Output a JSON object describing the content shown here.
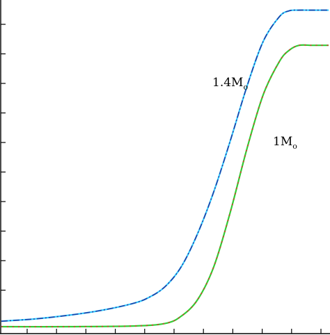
{
  "chart_data": {
    "type": "line",
    "title": "",
    "xlabel": "",
    "ylabel": "",
    "xlim": [
      0,
      1
    ],
    "ylim": [
      0,
      1
    ],
    "grid": false,
    "series": [
      {
        "name": "1.4M",
        "name_sub": "o",
        "color": "#1f3fa8",
        "overlay_color": "#33ccff",
        "style": "dash-dot",
        "x": [
          0.0,
          0.1,
          0.2,
          0.3,
          0.4,
          0.45,
          0.5,
          0.55,
          0.6,
          0.65,
          0.7,
          0.75,
          0.8,
          0.85,
          0.88,
          0.91,
          0.94,
          1.0
        ],
        "y": [
          0.017,
          0.024,
          0.035,
          0.05,
          0.072,
          0.091,
          0.125,
          0.188,
          0.292,
          0.425,
          0.583,
          0.75,
          0.892,
          0.97,
          0.988,
          0.99,
          0.99,
          0.99
        ]
      },
      {
        "name": "1M",
        "name_sub": "o",
        "color": "#e03030",
        "overlay_color": "#33cc33",
        "style": "dash-dot",
        "x": [
          0.0,
          0.2,
          0.4,
          0.5,
          0.55,
          0.6,
          0.65,
          0.7,
          0.75,
          0.8,
          0.85,
          0.88,
          0.91,
          0.95,
          1.0
        ],
        "y": [
          0.0,
          0.0,
          0.002,
          0.01,
          0.033,
          0.085,
          0.19,
          0.36,
          0.555,
          0.725,
          0.83,
          0.865,
          0.88,
          0.88,
          0.88
        ]
      }
    ],
    "x_minor_ticks": 11,
    "y_ticks": 10
  }
}
